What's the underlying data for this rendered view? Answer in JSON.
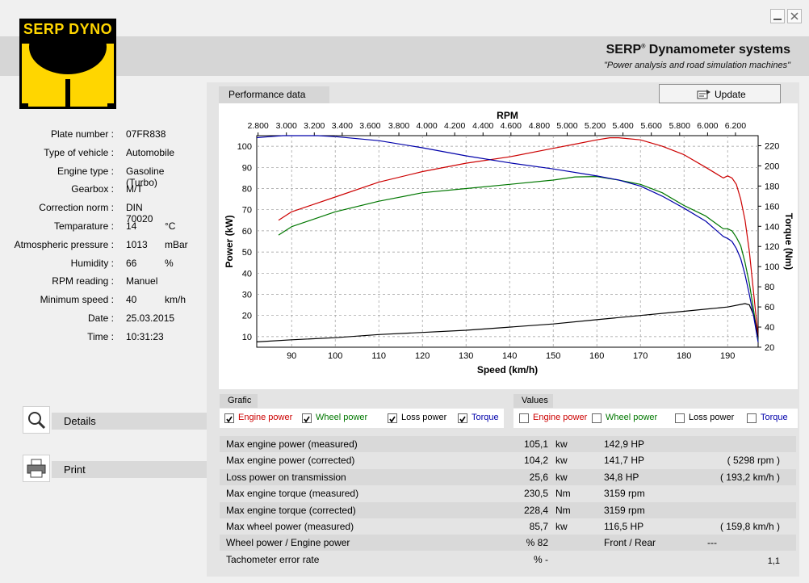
{
  "window": {
    "minimize_icon": "minimize-icon",
    "close_icon": "close-icon"
  },
  "logo": {
    "text": "SERP DYNO"
  },
  "brand": {
    "title": "SERP",
    "title_sup": "®",
    "title_rest": " Dynamometer systems",
    "subtitle": "\"Power analysis and road simulation machines\""
  },
  "info": [
    {
      "label": "Plate number :",
      "value": "07FR838",
      "unit": ""
    },
    {
      "label": "Type of vehicle :",
      "value": "Automobile",
      "unit": ""
    },
    {
      "label": "Engine type :",
      "value": "Gasoline (Turbo)",
      "unit": ""
    },
    {
      "label": "Gearbox :",
      "value": "M/T",
      "unit": ""
    },
    {
      "label": "Correction norm :",
      "value": "DIN 70020",
      "unit": ""
    },
    {
      "label": "Temparature :",
      "value": "14",
      "unit": "°C"
    },
    {
      "label": "Atmospheric pressure :",
      "value": "1013",
      "unit": "mBar"
    },
    {
      "label": "Humidity :",
      "value": "66",
      "unit": "%"
    },
    {
      "label": "RPM reading :",
      "value": "Manuel",
      "unit": ""
    },
    {
      "label": "Minimum speed :",
      "value": "40",
      "unit": "km/h"
    },
    {
      "label": "Date :",
      "value": "25.03.2015",
      "unit": ""
    },
    {
      "label": "Time :",
      "value": "10:31:23",
      "unit": ""
    }
  ],
  "side": {
    "details": "Details",
    "print": "Print"
  },
  "tabs": {
    "performance": "Performance data"
  },
  "update": {
    "label": "Update"
  },
  "grafic": {
    "title": "Grafic",
    "items": [
      {
        "label": "Engine power",
        "checked": true,
        "color": "#cc0000"
      },
      {
        "label": "Wheel power",
        "checked": true,
        "color": "#007700"
      },
      {
        "label": "Loss power",
        "checked": true,
        "color": "#000000"
      },
      {
        "label": "Torque",
        "checked": true,
        "color": "#0000aa"
      }
    ]
  },
  "values_group": {
    "title": "Values",
    "items": [
      {
        "label": "Engine power",
        "checked": false,
        "color": "#cc0000"
      },
      {
        "label": "Wheel power",
        "checked": false,
        "color": "#007700"
      },
      {
        "label": "Loss power",
        "checked": false,
        "color": "#000000"
      },
      {
        "label": "Torque",
        "checked": false,
        "color": "#0000aa"
      }
    ]
  },
  "results": [
    {
      "label": "Max engine power (measured)",
      "v1": "105,1",
      "u1": "kw",
      "v2": "142,9 HP",
      "v3": ""
    },
    {
      "label": "Max engine power (corrected)",
      "v1": "104,2",
      "u1": "kw",
      "v2": "141,7 HP",
      "v3": "( 5298 rpm )"
    },
    {
      "label": "Loss power on transmission",
      "v1": "25,6",
      "u1": "kw",
      "v2": "34,8 HP",
      "v3": "( 193,2 km/h )"
    },
    {
      "label": "Max engine torque (measured)",
      "v1": "230,5",
      "u1": "Nm",
      "v2": "3159 rpm",
      "v3": ""
    },
    {
      "label": "Max engine torque (corrected)",
      "v1": "228,4",
      "u1": "Nm",
      "v2": "3159 rpm",
      "v3": ""
    },
    {
      "label": "Max wheel power (measured)",
      "v1": "85,7",
      "u1": "kw",
      "v2": "116,5 HP",
      "v3": "( 159,8 km/h )"
    },
    {
      "label": "Wheel power / Engine power",
      "v1": "% 82",
      "u1": "",
      "v2": "Front / Rear",
      "v3": "---"
    },
    {
      "label": "Tachometer error rate",
      "v1": "% -",
      "u1": "",
      "v2": "",
      "v3": "1,1"
    }
  ],
  "chart_data": {
    "type": "line",
    "title": "RPM",
    "xlabel": "Speed (km/h)",
    "ylabel": "Power (kW)",
    "y2label": "Torque (Nm)",
    "xlim": [
      82,
      197
    ],
    "ylim": [
      5,
      105
    ],
    "y2lim": [
      20,
      230
    ],
    "x_ticks": [
      90,
      100,
      110,
      120,
      130,
      140,
      150,
      160,
      170,
      180,
      190
    ],
    "y_ticks": [
      10,
      20,
      30,
      40,
      50,
      60,
      70,
      80,
      90,
      100
    ],
    "y2_ticks": [
      20,
      40,
      60,
      80,
      100,
      120,
      140,
      160,
      180,
      200,
      220
    ],
    "top_ticks": [
      {
        "label": "2.800",
        "x": 82.3
      },
      {
        "label": "3.000",
        "x": 88.8
      },
      {
        "label": "3.200",
        "x": 95.2
      },
      {
        "label": "3.400",
        "x": 101.6
      },
      {
        "label": "3.600",
        "x": 108.0
      },
      {
        "label": "3.800",
        "x": 114.6
      },
      {
        "label": "4.000",
        "x": 121.0
      },
      {
        "label": "4.200",
        "x": 127.4
      },
      {
        "label": "4.400",
        "x": 133.9
      },
      {
        "label": "4.600",
        "x": 140.3
      },
      {
        "label": "4.800",
        "x": 146.8
      },
      {
        "label": "5.000",
        "x": 153.2
      },
      {
        "label": "5.200",
        "x": 159.6
      },
      {
        "label": "5.400",
        "x": 166.0
      },
      {
        "label": "5.600",
        "x": 172.5
      },
      {
        "label": "5.800",
        "x": 179.0
      },
      {
        "label": "6.000",
        "x": 185.4
      },
      {
        "label": "6.200",
        "x": 191.8
      }
    ],
    "grid": true,
    "series": [
      {
        "name": "Engine power",
        "color": "#cc0000",
        "axis": "left",
        "x": [
          87,
          90,
          100,
          110,
          120,
          130,
          140,
          150,
          155,
          160,
          163,
          165,
          170,
          175,
          180,
          185,
          189,
          190,
          191,
          192,
          193,
          194,
          195,
          196,
          197
        ],
        "y": [
          65,
          69,
          76,
          83,
          88,
          92,
          95,
          99,
          101,
          103,
          104,
          104,
          103,
          100,
          96,
          90,
          85,
          86,
          85,
          82,
          75,
          65,
          50,
          30,
          10
        ]
      },
      {
        "name": "Wheel power",
        "color": "#007700",
        "axis": "left",
        "x": [
          87,
          90,
          100,
          110,
          120,
          130,
          140,
          150,
          155,
          160,
          165,
          170,
          175,
          180,
          185,
          189,
          190,
          191,
          192,
          193,
          194,
          195,
          196,
          197
        ],
        "y": [
          58,
          62,
          69,
          74,
          78,
          80,
          82,
          84,
          85.5,
          85.7,
          84,
          82,
          78,
          72,
          67,
          61,
          61,
          60,
          57,
          53,
          45,
          35,
          22,
          8
        ]
      },
      {
        "name": "Loss power",
        "color": "#000000",
        "axis": "left",
        "x": [
          82,
          90,
          100,
          110,
          120,
          130,
          140,
          150,
          160,
          170,
          180,
          190,
          194,
          195,
          196,
          197
        ],
        "y": [
          7.5,
          8.5,
          9.5,
          11,
          12,
          13,
          14.5,
          16,
          18,
          20,
          22,
          24,
          25.6,
          25,
          20,
          10
        ]
      },
      {
        "name": "Torque",
        "color": "#0000aa",
        "axis": "right",
        "x": [
          82,
          85,
          88,
          92,
          96,
          100,
          110,
          120,
          130,
          140,
          150,
          160,
          165,
          170,
          175,
          180,
          185,
          189,
          190,
          191,
          192,
          193,
          194,
          195,
          196,
          197
        ],
        "y": [
          228,
          229,
          230,
          230,
          230,
          229,
          225,
          218,
          210,
          203,
          197,
          190,
          186,
          180,
          170,
          158,
          145,
          130,
          128,
          125,
          118,
          108,
          92,
          72,
          50,
          25
        ]
      }
    ]
  }
}
